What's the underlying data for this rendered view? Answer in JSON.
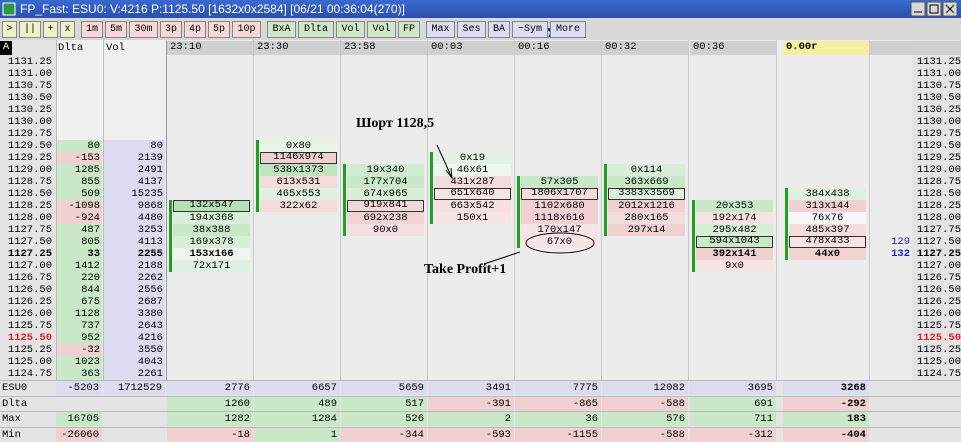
{
  "window": {
    "title": "FP_Fast: ESU0: V:4216 P:1125.50 [1632x0x2584] [06/21 00:36:04(270)]"
  },
  "toolbar": [
    {
      "color": "#eef2c8",
      "buttons": [
        ">",
        "||",
        "+",
        "x"
      ]
    },
    {
      "color": "#f6d8d8",
      "buttons": [
        "1m",
        "5m",
        "30m",
        "3p",
        "4p",
        "5p",
        "10p"
      ]
    },
    {
      "color": "#cfe6c8",
      "buttons": [
        "BxA",
        "Dlta",
        "Vol",
        "Vol",
        "FP"
      ]
    },
    {
      "color": "#dcdcf4",
      "buttons": [
        "Max",
        "Ses",
        "BA",
        "~Sym",
        "More"
      ]
    }
  ],
  "header": {
    "corner": "A",
    "dlta": "Dlta",
    "vol": "Vol",
    "last": "0.00r"
  },
  "ladder": [
    {
      "price": "1131.25"
    },
    {
      "price": "1131.00"
    },
    {
      "price": "1130.75"
    },
    {
      "price": "1130.50"
    },
    {
      "price": "1130.25"
    },
    {
      "price": "1130.00"
    },
    {
      "price": "1129.75"
    },
    {
      "price": "1129.50",
      "dlta": 80,
      "vol": 80
    },
    {
      "price": "1129.25",
      "dlta": -153,
      "vol": 2139
    },
    {
      "price": "1129.00",
      "dlta": 1285,
      "vol": 2491
    },
    {
      "price": "1128.75",
      "dlta": 855,
      "vol": 4137
    },
    {
      "price": "1128.50",
      "dlta": 509,
      "vol": 15235
    },
    {
      "price": "1128.25",
      "dlta": -1098,
      "vol": 9868
    },
    {
      "price": "1128.00",
      "dlta": -924,
      "vol": 4480
    },
    {
      "price": "1127.75",
      "dlta": 487,
      "vol": 3253
    },
    {
      "price": "1127.50",
      "dlta": 805,
      "vol": 4113
    },
    {
      "price": "1127.25",
      "dlta": 33,
      "vol": 2255,
      "bold": true
    },
    {
      "price": "1127.00",
      "dlta": 1412,
      "vol": 2188
    },
    {
      "price": "1126.75",
      "dlta": 220,
      "vol": 2262
    },
    {
      "price": "1126.50",
      "dlta": 844,
      "vol": 2556
    },
    {
      "price": "1126.25",
      "dlta": 675,
      "vol": 2687
    },
    {
      "price": "1126.00",
      "dlta": 1128,
      "vol": 3380
    },
    {
      "price": "1125.75",
      "dlta": 737,
      "vol": 2643
    },
    {
      "price": "1125.50",
      "dlta": 952,
      "vol": 4216,
      "last": true
    },
    {
      "price": "1125.25",
      "dlta": -32,
      "vol": 3550
    },
    {
      "price": "1125.00",
      "dlta": 1023,
      "vol": 4043
    },
    {
      "price": "1124.75",
      "dlta": 363,
      "vol": 2261
    }
  ],
  "columns": [
    {
      "time": "23:10",
      "cells": [
        {
          "price": "1128.25",
          "text": "132x547",
          "boxed": true,
          "color": "#b8e0b8"
        },
        {
          "price": "1128.00",
          "text": "194x368",
          "color": "#d8eed8"
        },
        {
          "price": "1127.75",
          "text": "38x388",
          "color": "#c8e8c8"
        },
        {
          "price": "1127.50",
          "text": "169x378",
          "color": "#d8eed8"
        },
        {
          "price": "1127.25",
          "text": "153x166",
          "color": "#eef6ee"
        },
        {
          "price": "1127.00",
          "text": "72x171",
          "color": "#e0f0e0"
        }
      ]
    },
    {
      "time": "23:30",
      "cells": [
        {
          "price": "1129.50",
          "text": "0x80",
          "color": "#e8f4e8"
        },
        {
          "price": "1129.25",
          "text": "1146x974",
          "boxed": true,
          "color": "#f0d0d0"
        },
        {
          "price": "1129.00",
          "text": "538x1373",
          "color": "#c0e4c0"
        },
        {
          "price": "1128.75",
          "text": "613x531",
          "color": "#f4dcdc"
        },
        {
          "price": "1128.50",
          "text": "465x553",
          "color": "#e0f0e0"
        },
        {
          "price": "1128.25",
          "text": "322x62",
          "color": "#f4dcdc"
        }
      ]
    },
    {
      "time": "23:58",
      "cells": [
        {
          "price": "1129.00",
          "text": "19x340",
          "color": "#d0ecd0"
        },
        {
          "price": "1128.75",
          "text": "177x704",
          "color": "#c8e8c8"
        },
        {
          "price": "1128.50",
          "text": "674x965",
          "color": "#d8eed8"
        },
        {
          "price": "1128.25",
          "text": "919x841",
          "boxed": true,
          "color": "#f0d8d8"
        },
        {
          "price": "1128.00",
          "text": "692x238",
          "color": "#f0d4d4"
        },
        {
          "price": "1127.75",
          "text": "90x0",
          "color": "#f4e0e0"
        }
      ]
    },
    {
      "time": "00:03",
      "cells": [
        {
          "price": "1129.25",
          "text": "0x19",
          "color": "#e4f2e4"
        },
        {
          "price": "1129.00",
          "text": "46x61",
          "color": "#eef6ee"
        },
        {
          "price": "1128.75",
          "text": "431x287",
          "color": "#f4dcdc"
        },
        {
          "price": "1128.50",
          "text": "651x640",
          "boxed": true,
          "color": "#f6e4e4"
        },
        {
          "price": "1128.25",
          "text": "663x542",
          "color": "#f6e0e0"
        },
        {
          "price": "1128.00",
          "text": "150x1",
          "color": "#f6e4e4"
        }
      ]
    },
    {
      "time": "00:16",
      "cells": [
        {
          "price": "1128.75",
          "text": "57x305",
          "color": "#c8e8c8"
        },
        {
          "price": "1128.50",
          "text": "1806x1707",
          "boxed": true,
          "color": "#f4dcdc"
        },
        {
          "price": "1128.25",
          "text": "1102x680",
          "color": "#f0d0d0"
        },
        {
          "price": "1128.00",
          "text": "1118x616",
          "color": "#f0d0d0"
        },
        {
          "price": "1127.75",
          "text": "170x147",
          "color": "#f6e4e4"
        },
        {
          "price": "1127.50",
          "text": "67x0",
          "color": "#f6e4e4"
        }
      ]
    },
    {
      "time": "00:32",
      "cells": [
        {
          "price": "1129.00",
          "text": "0x114",
          "color": "#d8eed8"
        },
        {
          "price": "1128.75",
          "text": "363x669",
          "color": "#c8e8c8"
        },
        {
          "price": "1128.50",
          "text": "3383x3569",
          "boxed": true,
          "color": "#e0f0e0"
        },
        {
          "price": "1128.25",
          "text": "2012x1216",
          "color": "#f0d0d0"
        },
        {
          "price": "1128.00",
          "text": "280x165",
          "color": "#f4dcdc"
        },
        {
          "price": "1127.75",
          "text": "297x14",
          "color": "#f0d0d0"
        }
      ]
    },
    {
      "time": "00:36",
      "cells": [
        {
          "price": "1128.25",
          "text": "20x353",
          "color": "#c8e8c8"
        },
        {
          "price": "1128.00",
          "text": "192x174",
          "color": "#f6e4e4"
        },
        {
          "price": "1127.75",
          "text": "295x482",
          "color": "#d8eed8"
        },
        {
          "price": "1127.50",
          "text": "594x1043",
          "boxed": true,
          "color": "#c8e8c8"
        },
        {
          "price": "1127.25",
          "text": "392x141",
          "color": "#f0d0d0"
        },
        {
          "price": "1127.00",
          "text": "9x0",
          "color": "#f6e4e4"
        }
      ]
    },
    {
      "time": "",
      "cells": [
        {
          "price": "1128.50",
          "text": "384x438",
          "color": "#e0f0e0"
        },
        {
          "price": "1128.25",
          "text": "313x144",
          "color": "#f0d0d0"
        },
        {
          "price": "1128.00",
          "text": "76x76",
          "color": "#f6f6f6"
        },
        {
          "price": "1127.75",
          "text": "485x397",
          "color": "#f4dcdc"
        },
        {
          "price": "1127.50",
          "text": "478x433",
          "boxed": true,
          "color": "#f6e4e4"
        },
        {
          "price": "1127.25",
          "text": "44x0",
          "color": "#f0d4d4"
        }
      ]
    }
  ],
  "side": [
    {
      "price": "1127.50",
      "value": 129
    },
    {
      "price": "1127.25",
      "value": 132
    }
  ],
  "footer": [
    {
      "label": "ESU0",
      "values": [
        -5203,
        1712529,
        2776,
        6657,
        5659,
        3491,
        7775,
        12082,
        3695,
        3268
      ]
    },
    {
      "label": "Dlta",
      "values": [
        null,
        null,
        1260,
        489,
        517,
        -391,
        -865,
        -588,
        691,
        -292
      ]
    },
    {
      "label": "Max",
      "values": [
        16705,
        null,
        1282,
        1284,
        526,
        2,
        36,
        576,
        711,
        183
      ]
    },
    {
      "label": "Min",
      "values": [
        -26060,
        null,
        -18,
        1,
        -344,
        -593,
        -1155,
        -588,
        -312,
        -404
      ]
    }
  ],
  "annotations": {
    "short": "Шорт 1128,5",
    "take_profit": "Take Profit+1"
  }
}
